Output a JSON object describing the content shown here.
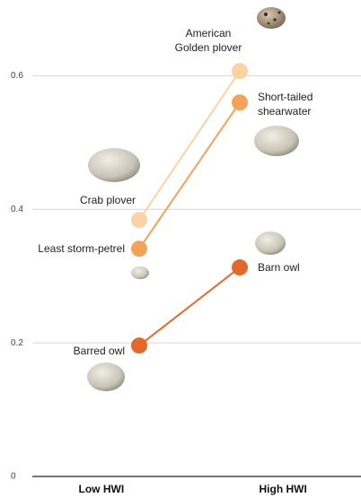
{
  "chart_data": {
    "type": "slope",
    "categories": [
      "Low HWI",
      "High HWI"
    ],
    "ylim": [
      0,
      0.7
    ],
    "yticks": [
      0,
      0.2,
      0.4,
      0.6
    ],
    "grid": true,
    "series": [
      {
        "labels": [
          "Crab plover",
          "American Golden plover"
        ],
        "color": "#fbd2a2",
        "values": [
          0.384,
          0.607
        ]
      },
      {
        "labels": [
          "Least storm-petrel",
          "Short-tailed shearwater"
        ],
        "color": "#f4a15a",
        "values": [
          0.341,
          0.56
        ]
      },
      {
        "labels": [
          "Barred owl",
          "Barn owl"
        ],
        "color": "#e2692a",
        "values": [
          0.196,
          0.313
        ]
      }
    ]
  }
}
